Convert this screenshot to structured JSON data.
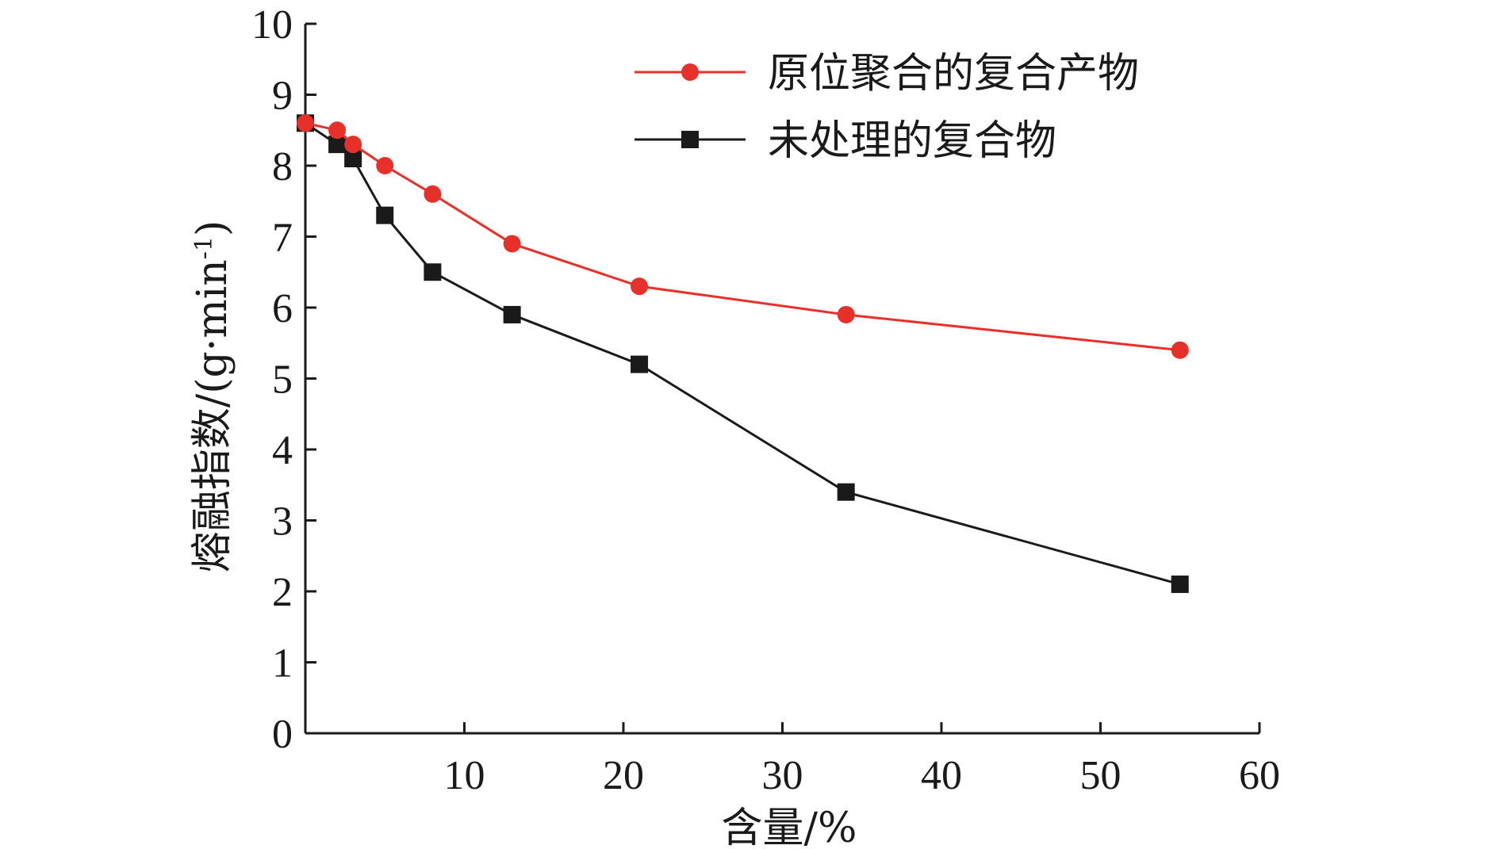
{
  "chart_data": {
    "type": "line",
    "title": "",
    "xlabel": "含量/%",
    "ylabel": "熔融指数/(g·min",
    "ylabel_superscript": "-1",
    "ylabel_close": ")",
    "xlim": [
      0,
      60
    ],
    "ylim": [
      0,
      10
    ],
    "x_ticks": [
      10,
      20,
      30,
      40,
      50,
      60
    ],
    "y_ticks": [
      0,
      1,
      2,
      3,
      4,
      5,
      6,
      7,
      8,
      9,
      10
    ],
    "grid": false,
    "legend_position": "top-right",
    "series": [
      {
        "name": "原位聚合的复合产物",
        "color": "#e8302a",
        "marker": "circle",
        "x": [
          0,
          2,
          3,
          5,
          8,
          13,
          21,
          34,
          55
        ],
        "y": [
          8.6,
          8.5,
          8.3,
          8.0,
          7.6,
          6.9,
          6.3,
          5.9,
          5.4
        ]
      },
      {
        "name": "未处理的复合物",
        "color": "#1a1a1a",
        "marker": "square",
        "x": [
          0,
          2,
          3,
          5,
          8,
          13,
          21,
          34,
          55
        ],
        "y": [
          8.6,
          8.3,
          8.1,
          7.3,
          6.5,
          5.9,
          5.2,
          3.4,
          2.1
        ]
      }
    ]
  }
}
